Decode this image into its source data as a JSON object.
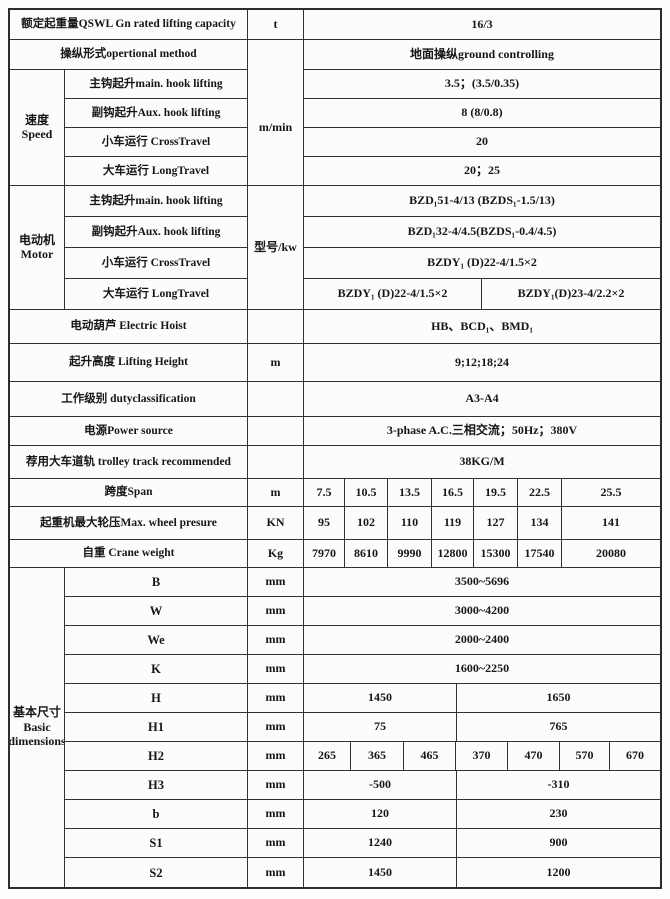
{
  "rows": {
    "capacity": {
      "label": "额定起重量QSWL Gn rated lifting capacity",
      "unit": "t",
      "value": "16/3"
    },
    "method": {
      "label": "操纵形式opertional method",
      "value": "地面操纵ground controlling"
    }
  },
  "speed": {
    "group_cn": "速度",
    "group_en": "Speed",
    "unit": "m/min",
    "items": [
      {
        "label": "主钩起升main. hook lifting",
        "value": "3.5；(3.5/0.35)"
      },
      {
        "label": "副钩起升Aux. hook lifting",
        "value": "8 (8/0.8)"
      },
      {
        "label": "小车运行 CrossTravel",
        "value": "20"
      },
      {
        "label": "大车运行 LongTravel",
        "value": "20；25"
      }
    ]
  },
  "motor": {
    "group_cn": "电动机",
    "group_en": "Motor",
    "unit": "型号/kw",
    "items": [
      {
        "label": "主钩起升main. hook lifting",
        "value": "BZD₁51-4/13 (BZDS₁-1.5/13)"
      },
      {
        "label": "副钩起升Aux. hook lifting",
        "value": "BZD₁32-4/4.5(BZDS₁-0.4/4.5)"
      },
      {
        "label": "小车运行 CrossTravel",
        "value": "BZDY₁ (D)22-4/1.5×2"
      }
    ],
    "long_travel": {
      "label": "大车运行 LongTravel",
      "left": "BZDY₁ (D)22-4/1.5×2",
      "right": "BZDY₁(D)23-4/2.2×2"
    }
  },
  "mid_rows": [
    {
      "label": "电动葫芦 Electric Hoist",
      "unit": "",
      "value": "HB、BCD₁、BMD₁"
    },
    {
      "label": "起升高度 Lifting Height",
      "unit": "m",
      "value": "9;12;18;24"
    },
    {
      "label": "工作级别 dutyclassification",
      "unit": "",
      "value": "A3-A4"
    },
    {
      "label": "电源Power source",
      "unit": "",
      "value": "3-phase A.C.三相交流；50Hz；380V"
    },
    {
      "label": "荐用大车道轨 trolley track recommended",
      "unit": "",
      "value": "38KG/M"
    }
  ],
  "span_rows": [
    {
      "label": "跨度Span",
      "unit": "m",
      "values": [
        "7.5",
        "10.5",
        "13.5",
        "16.5",
        "19.5",
        "22.5",
        "25.5"
      ]
    },
    {
      "label": "起重机最大轮压Max. wheel presure",
      "unit": "KN",
      "values": [
        "95",
        "102",
        "110",
        "119",
        "127",
        "134",
        "141"
      ]
    },
    {
      "label": "自重 Crane weight",
      "unit": "Kg",
      "values": [
        "7970",
        "8610",
        "9990",
        "12800",
        "15300",
        "17540",
        "20080"
      ]
    }
  ],
  "dimensions": {
    "group_cn": "基本尺寸",
    "group_en_1": "Basic",
    "group_en_2": "dimensions",
    "unit": "mm",
    "rows": [
      {
        "label": "B",
        "cells": [
          "3500~5696"
        ]
      },
      {
        "label": "W",
        "cells": [
          "3000~4200"
        ]
      },
      {
        "label": "We",
        "cells": [
          "2000~2400"
        ]
      },
      {
        "label": "K",
        "cells": [
          "1600~2250"
        ]
      },
      {
        "label": "H",
        "cells": [
          "1450",
          "1650"
        ]
      },
      {
        "label": "H1",
        "cells": [
          "75",
          "765"
        ]
      },
      {
        "label": "H2",
        "cells": [
          "265",
          "365",
          "465",
          "370",
          "470",
          "570",
          "670"
        ]
      },
      {
        "label": "H3",
        "cells": [
          "-500",
          "-310"
        ]
      },
      {
        "label": "b",
        "cells": [
          "120",
          "230"
        ]
      },
      {
        "label": "S1",
        "cells": [
          "1240",
          "900"
        ]
      },
      {
        "label": "S2",
        "cells": [
          "1450",
          "1200"
        ]
      }
    ]
  }
}
